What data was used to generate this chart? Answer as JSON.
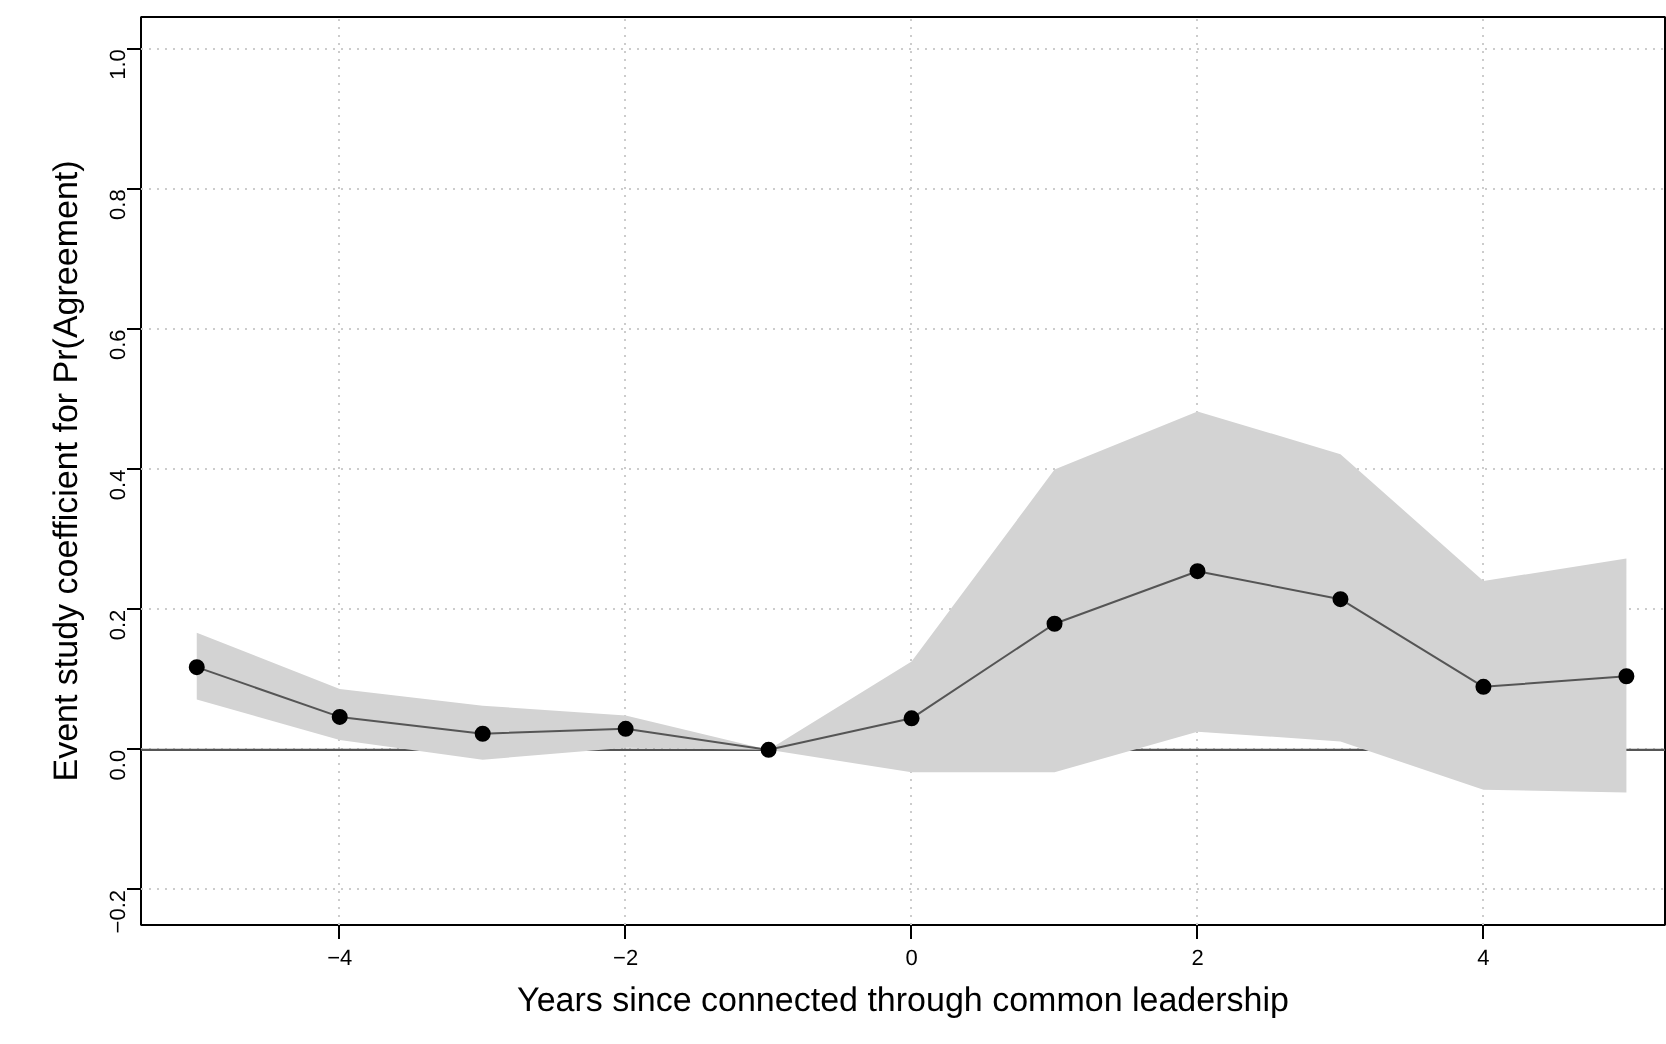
{
  "chart_data": {
    "type": "line",
    "xlabel": "Years since connected through common leadership",
    "ylabel": "Event study coefficient for Pr(Agreement)",
    "x": [
      -5,
      -4,
      -3,
      -2,
      -1,
      0,
      1,
      2,
      3,
      4,
      5
    ],
    "series": [
      {
        "color": "#000000",
        "values": [
          0.118,
          0.047,
          0.023,
          0.03,
          0,
          0.045,
          0.18,
          0.255,
          0.215,
          0.09,
          0.105
        ],
        "lower": [
          0.072,
          0.014,
          -0.014,
          0.003,
          0,
          -0.032,
          -0.032,
          0.026,
          0.012,
          -0.057,
          -0.061
        ],
        "upper": [
          0.167,
          0.087,
          0.063,
          0.049,
          0,
          0.126,
          0.4,
          0.483,
          0.422,
          0.241,
          0.273
        ]
      }
    ],
    "xlim": [
      -5.39,
      5.27
    ],
    "ylim": [
      -0.25,
      1.046
    ],
    "xticks": [
      {
        "value": -4,
        "label": "−4"
      },
      {
        "value": -2,
        "label": "−2"
      },
      0,
      2,
      4
    ],
    "yticks": [
      {
        "value": -0.2,
        "label": "−0.2"
      },
      {
        "value": 0,
        "label": "0.0"
      },
      0.2,
      0.4,
      0.6,
      0.8,
      {
        "value": 1,
        "label": "1.0"
      }
    ],
    "ref_lines": [
      {
        "axis": "y",
        "value": 0,
        "color": "#555555"
      }
    ],
    "grid": true,
    "marker": "circle",
    "line_style": "solid"
  }
}
